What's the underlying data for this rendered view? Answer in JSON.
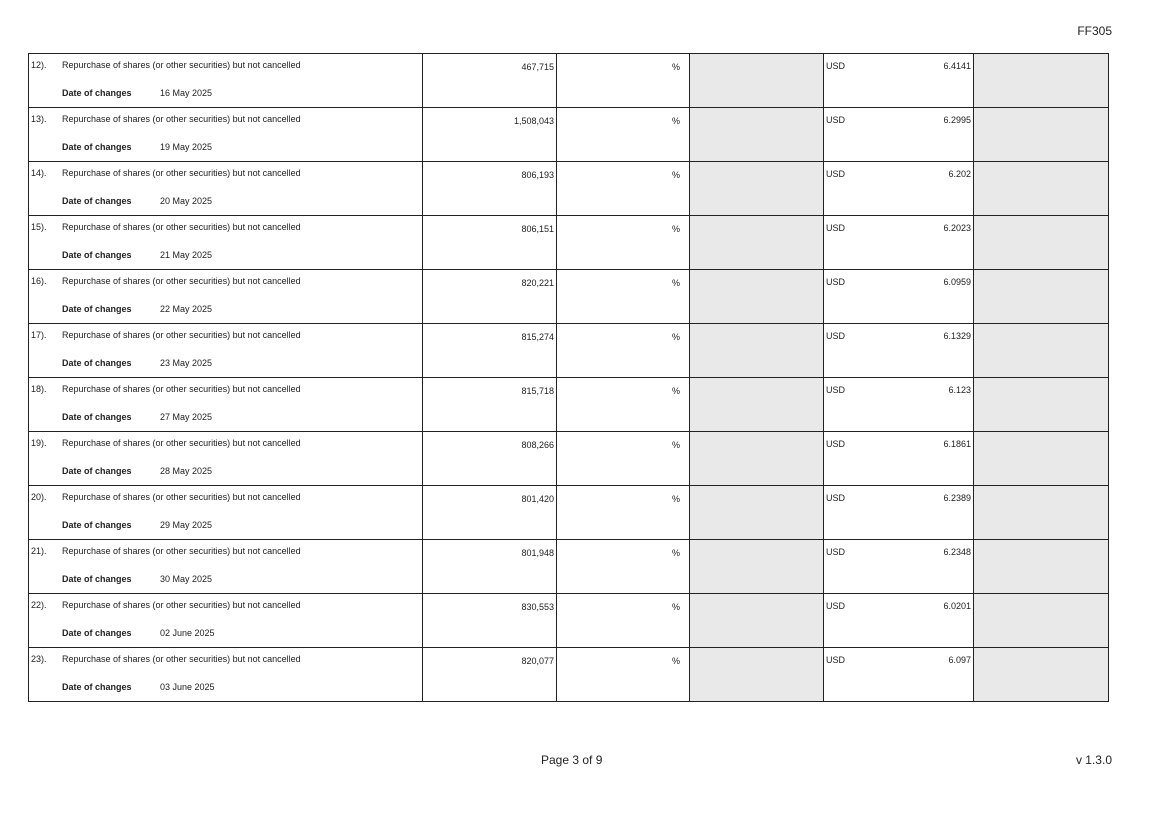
{
  "header": {
    "form_code": "FF305"
  },
  "date_label": "Date of changes",
  "rows": [
    {
      "num": "12).",
      "desc": "Repurchase of shares (or other securities) but not cancelled",
      "date": "16 May 2025",
      "qty": "467,715",
      "pct": "%",
      "currency": "USD",
      "price": "6.4141"
    },
    {
      "num": "13).",
      "desc": "Repurchase of shares (or other securities) but not cancelled",
      "date": "19 May 2025",
      "qty": "1,508,043",
      "pct": "%",
      "currency": "USD",
      "price": "6.2995"
    },
    {
      "num": "14).",
      "desc": "Repurchase of shares (or other securities) but not cancelled",
      "date": "20 May 2025",
      "qty": "806,193",
      "pct": "%",
      "currency": "USD",
      "price": "6.202"
    },
    {
      "num": "15).",
      "desc": "Repurchase of shares (or other securities) but not cancelled",
      "date": "21 May 2025",
      "qty": "806,151",
      "pct": "%",
      "currency": "USD",
      "price": "6.2023"
    },
    {
      "num": "16).",
      "desc": "Repurchase of shares (or other securities) but not cancelled",
      "date": "22 May 2025",
      "qty": "820,221",
      "pct": "%",
      "currency": "USD",
      "price": "6.0959"
    },
    {
      "num": "17).",
      "desc": "Repurchase of shares (or other securities) but not cancelled",
      "date": "23 May 2025",
      "qty": "815,274",
      "pct": "%",
      "currency": "USD",
      "price": "6.1329"
    },
    {
      "num": "18).",
      "desc": "Repurchase of shares (or other securities) but not cancelled",
      "date": "27 May 2025",
      "qty": "815,718",
      "pct": "%",
      "currency": "USD",
      "price": "6.123"
    },
    {
      "num": "19).",
      "desc": "Repurchase of shares (or other securities) but not cancelled",
      "date": "28 May 2025",
      "qty": "808,266",
      "pct": "%",
      "currency": "USD",
      "price": "6.1861"
    },
    {
      "num": "20).",
      "desc": "Repurchase of shares (or other securities) but not cancelled",
      "date": "29 May 2025",
      "qty": "801,420",
      "pct": "%",
      "currency": "USD",
      "price": "6.2389"
    },
    {
      "num": "21).",
      "desc": "Repurchase of shares (or other securities) but not cancelled",
      "date": "30 May 2025",
      "qty": "801,948",
      "pct": "%",
      "currency": "USD",
      "price": "6.2348"
    },
    {
      "num": "22).",
      "desc": "Repurchase of shares (or other securities) but not cancelled",
      "date": "02 June 2025",
      "qty": "830,553",
      "pct": "%",
      "currency": "USD",
      "price": "6.0201"
    },
    {
      "num": "23).",
      "desc": "Repurchase of shares (or other securities) but not cancelled",
      "date": "03 June 2025",
      "qty": "820,077",
      "pct": "%",
      "currency": "USD",
      "price": "6.097"
    }
  ],
  "footer": {
    "page": "Page 3 of 9",
    "version": "v 1.3.0"
  }
}
